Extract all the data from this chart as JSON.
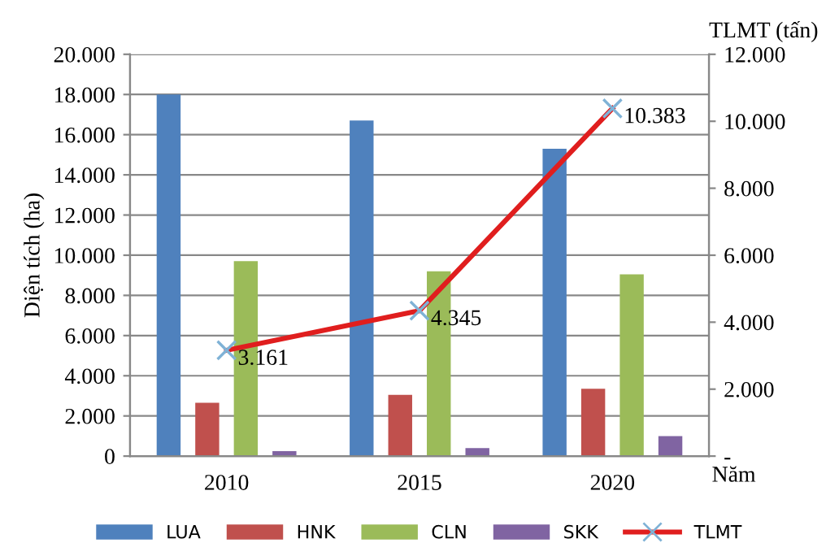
{
  "chart_data": {
    "type": "bar",
    "categories": [
      "2010",
      "2015",
      "2020"
    ],
    "xlabel": "Năm",
    "ylabel": "Diện tích (ha)",
    "y2label": "TLMT (tấn)",
    "series": [
      {
        "name": "LUA",
        "color": "#4f81bd",
        "values": [
          18000,
          16700,
          15300
        ]
      },
      {
        "name": "HNK",
        "color": "#c0504d",
        "values": [
          2650,
          3050,
          3350
        ]
      },
      {
        "name": "CLN",
        "color": "#9bbb59",
        "values": [
          9700,
          9200,
          9050
        ]
      },
      {
        "name": "SKK",
        "color": "#8064a2",
        "values": [
          250,
          400,
          1000
        ]
      },
      {
        "name": "TLMT",
        "type": "line",
        "axis": "y2",
        "color": "#e01e1e",
        "marker": "cross",
        "values": [
          3161,
          4345,
          10383
        ],
        "value_labels": [
          "3.161",
          "4.345",
          "10.383"
        ]
      }
    ],
    "ylim": [
      0,
      20000
    ],
    "yticks": [
      0,
      {
        "value": 2000,
        "label": "2.000"
      },
      {
        "value": 4000,
        "label": "4.000"
      },
      {
        "value": 6000,
        "label": "6.000"
      },
      {
        "value": 8000,
        "label": "8.000"
      },
      {
        "value": 10000,
        "label": "10.000"
      },
      {
        "value": 12000,
        "label": "12.000"
      },
      {
        "value": 14000,
        "label": "14.000"
      },
      {
        "value": 16000,
        "label": "16.000"
      },
      {
        "value": 18000,
        "label": "18.000"
      },
      {
        "value": 20000,
        "label": "20.000"
      }
    ],
    "y2lim": [
      0,
      12000
    ],
    "y2ticks": [
      {
        "value": 0,
        "label": "-"
      },
      {
        "value": 2000,
        "label": "2.000"
      },
      {
        "value": 4000,
        "label": "4.000"
      },
      {
        "value": 6000,
        "label": "6.000"
      },
      {
        "value": 8000,
        "label": "8.000"
      },
      {
        "value": 10000,
        "label": "10.000"
      },
      {
        "value": 12000,
        "label": "12.000"
      }
    ],
    "grid": "y",
    "legend": "bottom"
  }
}
